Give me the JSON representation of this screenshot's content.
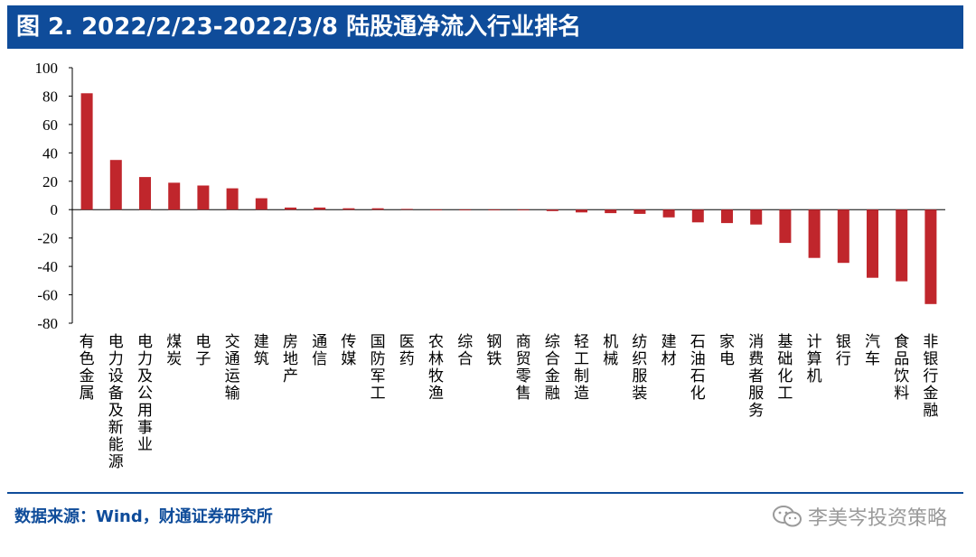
{
  "title": "图 2. 2022/2/23-2022/3/8 陆股通净流入行业排名",
  "source": "数据来源：Wind，财通证券研究所",
  "watermark": "李美岑投资策略",
  "colors": {
    "bar": "#c0262c",
    "header_bg": "#0f4c9a",
    "header_text": "#ffffff",
    "source_text": "#0f4c9a"
  },
  "chart_data": {
    "type": "bar",
    "title": "2022/2/23-2022/3/8 陆股通净流入行业排名",
    "xlabel": "",
    "ylabel": "",
    "ylim": [
      -80,
      100
    ],
    "yticks": [
      100,
      80,
      60,
      40,
      20,
      0,
      -20,
      -40,
      -60,
      -80
    ],
    "grid": false,
    "legend": "none",
    "categories": [
      "有色金属",
      "电力设备及新能源",
      "电力及公用事业",
      "煤炭",
      "电子",
      "交通运输",
      "建筑",
      "房地产",
      "通信",
      "传媒",
      "国防军工",
      "医药",
      "农林牧渔",
      "综合",
      "钢铁",
      "商贸零售",
      "综合金融",
      "轻工制造",
      "机械",
      "纺织服装",
      "建材",
      "石油石化",
      "家电",
      "消费者服务",
      "基础化工",
      "计算机",
      "银行",
      "汽车",
      "食品饮料",
      "非银行金融"
    ],
    "values": [
      82,
      35,
      23,
      19,
      17,
      15,
      8,
      1.5,
      1.5,
      1,
      1,
      0.5,
      -0.5,
      -0.5,
      -0.5,
      -0.5,
      -1,
      -2,
      -2.5,
      -3,
      -5.5,
      -9,
      -9.5,
      -10.5,
      -23.5,
      -34,
      -37.5,
      -48,
      -50.5,
      -66.5
    ]
  }
}
